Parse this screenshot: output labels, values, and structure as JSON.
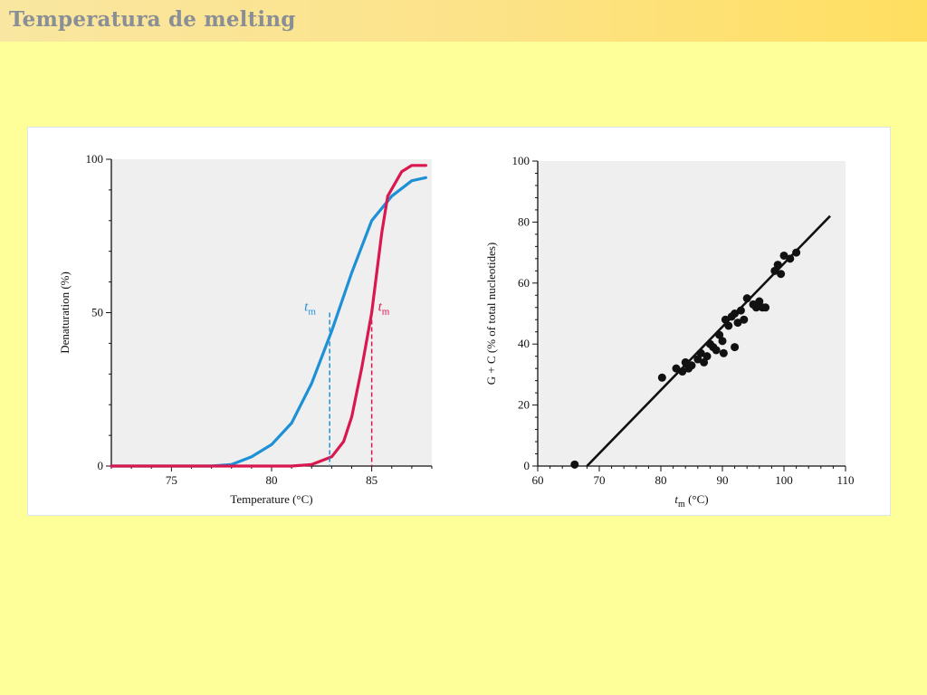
{
  "page": {
    "title": "Temperatura de melting"
  },
  "chart_data": [
    {
      "type": "line",
      "title": "",
      "xlabel": "Temperature (°C)",
      "ylabel": "Denaturation (%)",
      "xlim": [
        72,
        88
      ],
      "ylim": [
        0,
        100
      ],
      "xticks": [
        75,
        80,
        85
      ],
      "yticks": [
        0,
        50,
        100
      ],
      "grid": false,
      "background": "#efefef",
      "series": [
        {
          "color": "#1e90d6",
          "points": [
            [
              72,
              0
            ],
            [
              77,
              0
            ],
            [
              78,
              0.5
            ],
            [
              79,
              3
            ],
            [
              80,
              7
            ],
            [
              81,
              14
            ],
            [
              82,
              27
            ],
            [
              83,
              44
            ],
            [
              84,
              63
            ],
            [
              85,
              80
            ],
            [
              86,
              88
            ],
            [
              87,
              93
            ],
            [
              87.7,
              94
            ]
          ]
        },
        {
          "color": "#d8184f",
          "points": [
            [
              72,
              0
            ],
            [
              81,
              0
            ],
            [
              82,
              0.5
            ],
            [
              83,
              3
            ],
            [
              83.6,
              8
            ],
            [
              84,
              16
            ],
            [
              84.5,
              32
            ],
            [
              85,
              50
            ],
            [
              85.5,
              76
            ],
            [
              85.8,
              88
            ],
            [
              86.5,
              96
            ],
            [
              87,
              98
            ],
            [
              87.7,
              98
            ]
          ]
        }
      ],
      "annotations": [
        {
          "text": "t",
          "subscript": "m",
          "color": "#1e90d6",
          "x": 82.9,
          "y": 50
        },
        {
          "text": "t",
          "subscript": "m",
          "color": "#d8184f",
          "x": 85,
          "y": 50
        }
      ]
    },
    {
      "type": "scatter",
      "title": "",
      "xlabel": "t",
      "xlabel_sub": "m",
      "xlabel_tail": " (°C)",
      "ylabel": "G + C (% of total nucleotides)",
      "xlim": [
        60,
        110
      ],
      "ylim": [
        0,
        100
      ],
      "xticks": [
        60,
        70,
        80,
        90,
        100,
        110
      ],
      "yticks": [
        0,
        20,
        40,
        60,
        80,
        100
      ],
      "grid": false,
      "background": "#efefef",
      "fit_line": {
        "x": [
          68,
          107.5
        ],
        "y": [
          0,
          82
        ]
      },
      "points": [
        [
          66,
          0.5
        ],
        [
          80.2,
          29
        ],
        [
          82.5,
          32
        ],
        [
          83.5,
          31
        ],
        [
          84,
          34
        ],
        [
          84.5,
          32
        ],
        [
          85,
          33
        ],
        [
          86,
          35
        ],
        [
          86.5,
          37
        ],
        [
          87,
          34
        ],
        [
          87.5,
          36
        ],
        [
          88,
          40
        ],
        [
          88.5,
          39
        ],
        [
          89,
          38
        ],
        [
          89.5,
          43
        ],
        [
          90,
          41
        ],
        [
          90.2,
          37
        ],
        [
          90.5,
          48
        ],
        [
          91,
          46
        ],
        [
          91.5,
          49
        ],
        [
          92,
          50
        ],
        [
          92,
          39
        ],
        [
          92.5,
          47
        ],
        [
          93,
          51
        ],
        [
          93.5,
          48
        ],
        [
          94,
          55
        ],
        [
          95,
          53
        ],
        [
          95.5,
          52
        ],
        [
          96,
          54
        ],
        [
          96.5,
          52
        ],
        [
          97,
          52
        ],
        [
          98.5,
          64
        ],
        [
          99,
          66
        ],
        [
          99.5,
          63
        ],
        [
          100,
          69
        ],
        [
          101,
          68
        ],
        [
          102,
          70
        ]
      ]
    }
  ]
}
